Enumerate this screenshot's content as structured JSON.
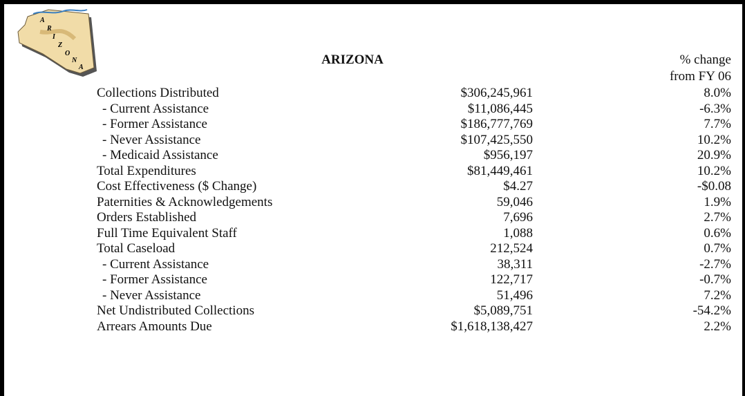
{
  "map_letters": [
    "A",
    "R",
    "I",
    "Z",
    "O",
    "N",
    "A"
  ],
  "header": {
    "title": "ARIZONA",
    "change_label": [
      "% change",
      "from FY 06"
    ]
  },
  "table": {
    "rows": [
      [
        "Collections Distributed",
        "$306,245,961",
        "8.0%"
      ],
      [
        "- Current Assistance",
        "$11,086,445",
        "-6.3%"
      ],
      [
        "- Former Assistance",
        "$186,777,769",
        "7.7%"
      ],
      [
        "- Never Assistance",
        "$107,425,550",
        "10.2%"
      ],
      [
        "- Medicaid Assistance",
        "$956,197",
        "20.9%"
      ],
      [
        "Total Expenditures",
        "$81,449,461",
        "10.2%"
      ],
      [
        "Cost Effectiveness ($ Change)",
        "$4.27",
        "-$0.08"
      ],
      [
        "Paternities & Acknowledgements",
        "59,046",
        "1.9%"
      ],
      [
        "Orders Established",
        "7,696",
        "2.7%"
      ],
      [
        "Full Time Equivalent Staff",
        "1,088",
        "0.6%"
      ],
      [
        "Total Caseload",
        "212,524",
        "0.7%"
      ],
      [
        "- Current Assistance",
        "38,311",
        "-2.7%"
      ],
      [
        "- Former Assistance",
        "122,717",
        "-0.7%"
      ],
      [
        "- Never Assistance",
        "51,496",
        "7.2%"
      ],
      [
        "Net Undistributed Collections",
        "$5,089,751",
        "-54.2%"
      ],
      [
        "Arrears Amounts Due",
        "$1,618,138,427",
        "2.2%"
      ]
    ]
  }
}
